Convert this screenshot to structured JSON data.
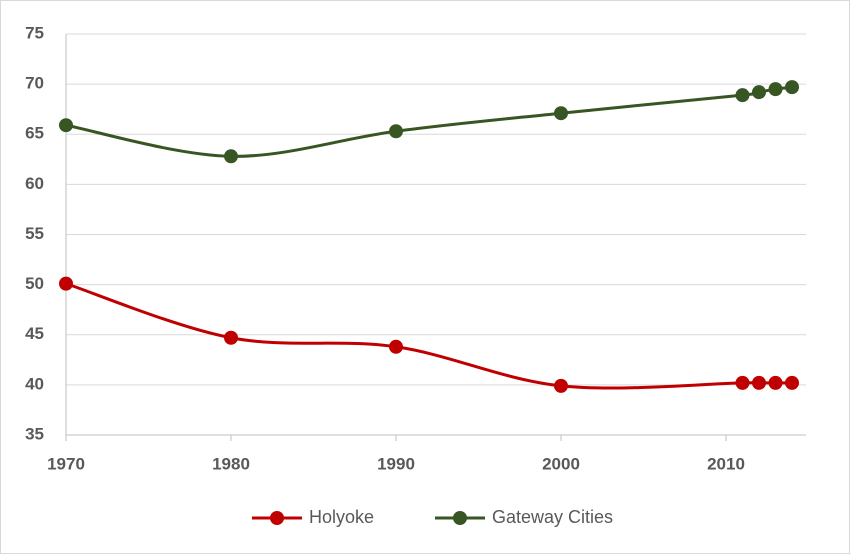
{
  "chart_data": {
    "type": "line",
    "x": [
      1970,
      1980,
      1990,
      2000,
      2011,
      2012,
      2013,
      2014
    ],
    "series": [
      {
        "name": "Holyoke",
        "color": "#c00000",
        "values": [
          50.1,
          44.7,
          43.8,
          39.9,
          40.2,
          40.2,
          40.2,
          40.2
        ]
      },
      {
        "name": "Gateway Cities",
        "color": "#375623",
        "values": [
          65.9,
          62.8,
          65.3,
          67.1,
          68.9,
          69.2,
          69.5,
          69.7
        ]
      }
    ],
    "xlim": [
      1970,
      2015
    ],
    "xticks": [
      1970,
      1980,
      1990,
      2000,
      2010
    ],
    "ylim": [
      35,
      75
    ],
    "yticks": [
      35,
      40,
      45,
      50,
      55,
      60,
      65,
      70,
      75
    ],
    "grid": true,
    "smooth": true,
    "legend": "bottom"
  }
}
